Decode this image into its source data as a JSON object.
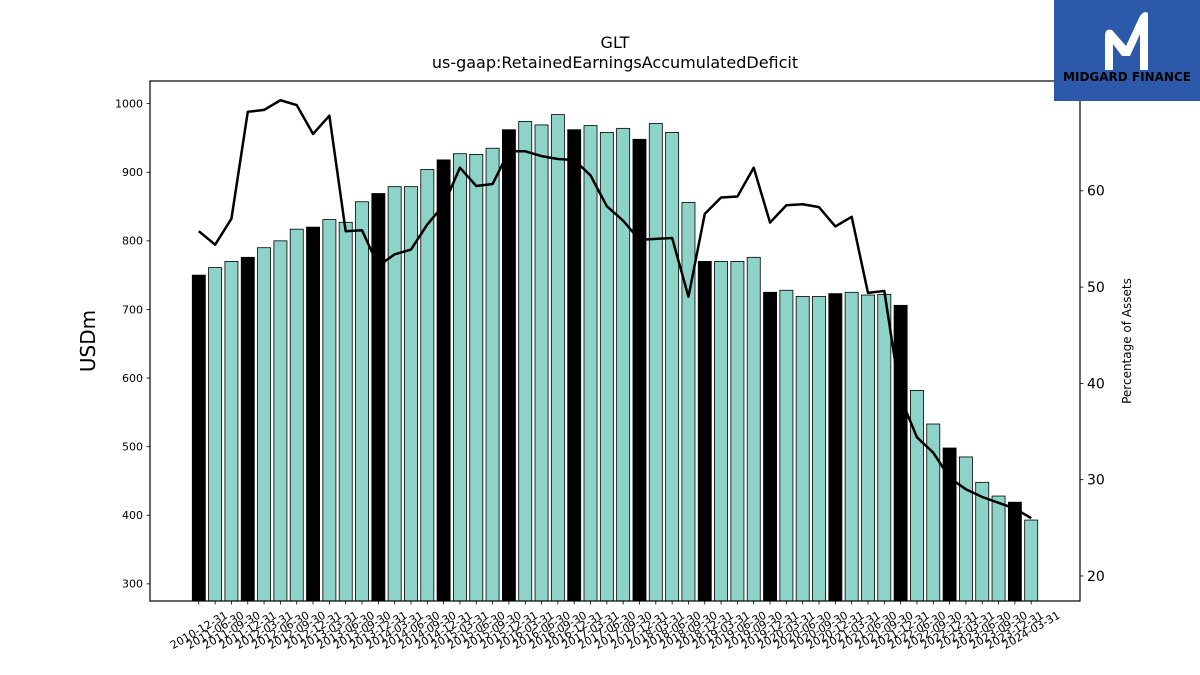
{
  "logo": {
    "name": "MIDGARD FINANCE",
    "icon": "midgard-logo-icon",
    "bg_color": "#2c59aa",
    "fg_color": "#ffffff"
  },
  "chart_data": {
    "type": "bar",
    "title": "GLT",
    "subtitle": "us-gaap:RetainedEarningsAccumulatedDeficit",
    "ylabel": "USDm",
    "y2label": "Percentage of Assets",
    "categories": [
      "2010-12-31",
      "2011-06-30",
      "2011-09-30",
      "2011-12-31",
      "2012-03-31",
      "2012-06-30",
      "2012-09-30",
      "2012-12-31",
      "2013-03-31",
      "2013-06-30",
      "2013-09-30",
      "2013-12-31",
      "2014-03-31",
      "2014-06-30",
      "2014-09-30",
      "2014-12-31",
      "2015-03-31",
      "2015-06-30",
      "2015-09-30",
      "2015-12-31",
      "2016-03-31",
      "2016-06-30",
      "2016-09-30",
      "2016-12-31",
      "2017-03-31",
      "2017-06-30",
      "2017-09-30",
      "2017-12-31",
      "2018-03-31",
      "2018-06-30",
      "2018-09-30",
      "2018-12-31",
      "2019-03-31",
      "2019-06-30",
      "2019-09-30",
      "2019-12-31",
      "2020-03-31",
      "2020-06-30",
      "2020-09-30",
      "2020-12-31",
      "2021-03-31",
      "2021-06-30",
      "2021-09-30",
      "2021-12-31",
      "2022-06-30",
      "2022-09-30",
      "2022-12-31",
      "2023-03-31",
      "2023-06-30",
      "2023-09-30",
      "2023-12-31",
      "2024-03-31"
    ],
    "series": [
      {
        "type": "bar",
        "axis": "left",
        "values": [
          750,
          761,
          770,
          776,
          790,
          800,
          817,
          820,
          831,
          827,
          857,
          869,
          879,
          879,
          904,
          918,
          927,
          926,
          935,
          962,
          974,
          969,
          984,
          962,
          968,
          958,
          964,
          948,
          971,
          958,
          856,
          770,
          770,
          770,
          776,
          725,
          728,
          719,
          719,
          723,
          725,
          721,
          722,
          706,
          582,
          533,
          498,
          485,
          448,
          428,
          419,
          393
        ],
        "colors": [
          "#000000",
          "#8dd3c7",
          "#8dd3c7",
          "#000000",
          "#8dd3c7",
          "#8dd3c7",
          "#8dd3c7",
          "#000000",
          "#8dd3c7",
          "#8dd3c7",
          "#8dd3c7",
          "#000000",
          "#8dd3c7",
          "#8dd3c7",
          "#8dd3c7",
          "#000000",
          "#8dd3c7",
          "#8dd3c7",
          "#8dd3c7",
          "#000000",
          "#8dd3c7",
          "#8dd3c7",
          "#8dd3c7",
          "#000000",
          "#8dd3c7",
          "#8dd3c7",
          "#8dd3c7",
          "#000000",
          "#8dd3c7",
          "#8dd3c7",
          "#8dd3c7",
          "#000000",
          "#8dd3c7",
          "#8dd3c7",
          "#8dd3c7",
          "#000000",
          "#8dd3c7",
          "#8dd3c7",
          "#8dd3c7",
          "#000000",
          "#8dd3c7",
          "#8dd3c7",
          "#8dd3c7",
          "#000000",
          "#8dd3c7",
          "#8dd3c7",
          "#000000",
          "#8dd3c7",
          "#8dd3c7",
          "#8dd3c7",
          "#000000",
          "#8dd3c7"
        ],
        "edge_color": "#000000"
      },
      {
        "type": "line",
        "axis": "right",
        "color": "#000000",
        "values": [
          55.8,
          54.4,
          57.1,
          68.2,
          68.4,
          69.4,
          68.9,
          65.9,
          67.8,
          55.8,
          55.9,
          52.2,
          53.4,
          53.9,
          56.5,
          58.5,
          62.4,
          60.5,
          60.7,
          64.1,
          64.1,
          63.6,
          63.3,
          63.2,
          61.6,
          58.4,
          56.9,
          54.9,
          55.0,
          55.1,
          49.0,
          57.6,
          59.3,
          59.4,
          62.4,
          56.7,
          58.5,
          58.6,
          58.3,
          56.3,
          57.3,
          49.4,
          49.6,
          38.5,
          34.4,
          32.8,
          30.2,
          29.0,
          28.2,
          27.6,
          27.0,
          26.0
        ]
      }
    ],
    "ylim": [
      275,
      1033
    ],
    "yticks": [
      300,
      400,
      500,
      600,
      700,
      800,
      900,
      1000
    ],
    "y2lim": [
      17.4,
      71.4
    ],
    "y2ticks": [
      20,
      30,
      40,
      50,
      60
    ],
    "grid": false,
    "legend": "none"
  }
}
